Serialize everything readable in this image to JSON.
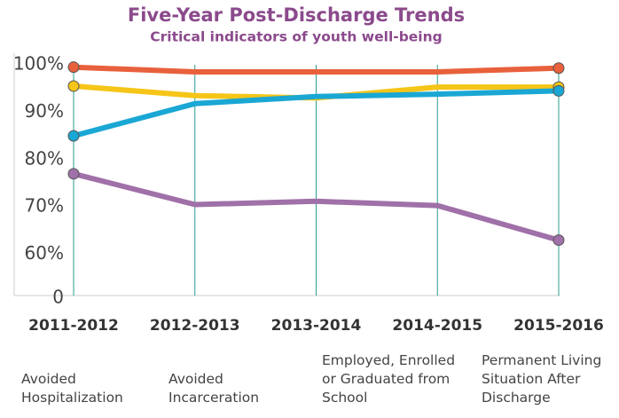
{
  "chart_data": {
    "type": "line",
    "title": "Five-Year Post-Discharge Trends",
    "subtitle": "Critical indicators of youth well-being",
    "categories": [
      "2011-2012",
      "2012-2013",
      "2013-2014",
      "2014-2015",
      "2015-2016"
    ],
    "series": [
      {
        "name": "Avoided Hospitalization",
        "color": "#e8603c",
        "values": [
          99.5,
          98.5,
          98.5,
          98.5,
          99.3
        ]
      },
      {
        "name": "Avoided Incarceration",
        "color": "#f5c518",
        "values": [
          95.5,
          93.5,
          93,
          95.3,
          95.3
        ]
      },
      {
        "name": "Employed, Enrolled or Graduated from School",
        "color": "#1aa7d4",
        "values": [
          85,
          91.8,
          93.3,
          93.8,
          94.5
        ]
      },
      {
        "name": "Permanent Living Situation After Discharge",
        "color": "#a070a8",
        "values": [
          77,
          70.5,
          71.2,
          70.3,
          63
        ]
      }
    ],
    "ylim": [
      50,
      100
    ],
    "axis_break": true,
    "yticks": [
      0,
      {
        "value": 60,
        "label": "60%"
      },
      {
        "value": 70,
        "label": "70%"
      },
      {
        "value": 80,
        "label": "80%"
      },
      {
        "value": 90,
        "label": "90%"
      },
      {
        "value": 100,
        "label": "100%"
      }
    ],
    "grid": true
  }
}
